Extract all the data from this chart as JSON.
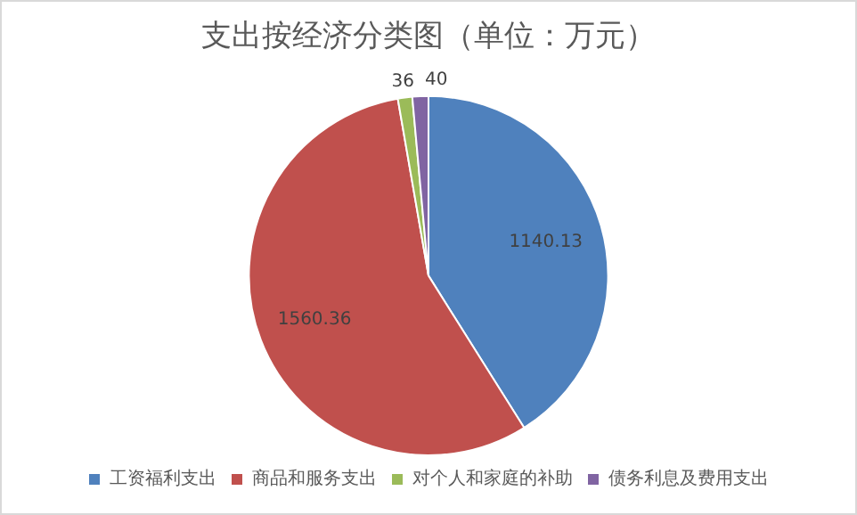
{
  "chart_data": {
    "type": "pie",
    "title": "支出按经济分类图（单位：万元）",
    "categories": [
      "工资福利支出",
      "商品和服务支出",
      "对个人和家庭的补助",
      "债务利息及费用支出"
    ],
    "values": [
      1140.13,
      1560.36,
      36,
      40
    ],
    "colors": [
      "#4f81bd",
      "#c0504d",
      "#9bbb59",
      "#8064a2"
    ],
    "data_labels": true,
    "legend": "bottom"
  }
}
